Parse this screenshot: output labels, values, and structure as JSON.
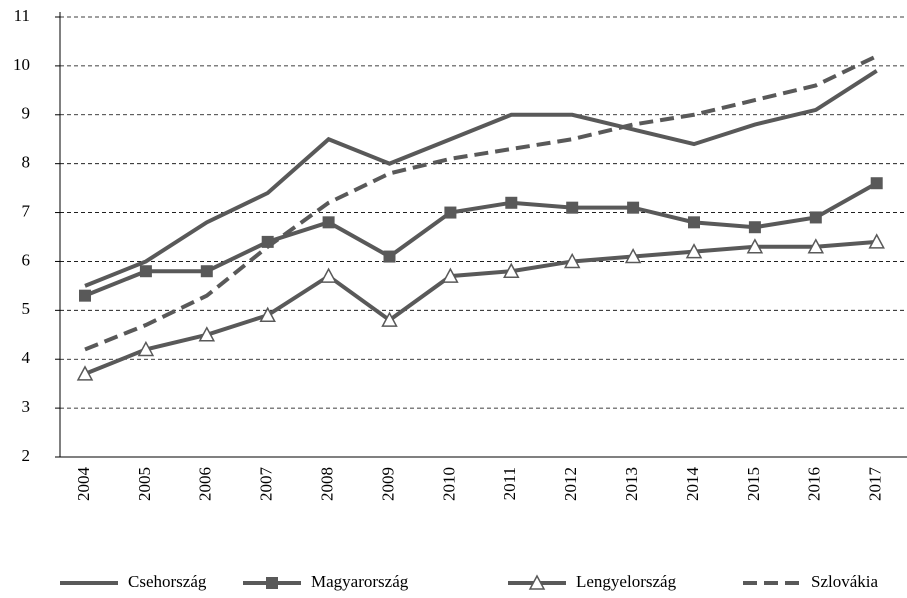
{
  "chart_data": {
    "type": "line",
    "categories": [
      "2004",
      "2005",
      "2006",
      "2007",
      "2008",
      "2009",
      "2010",
      "2011",
      "2012",
      "2013",
      "2014",
      "2015",
      "2016",
      "2017"
    ],
    "series": [
      {
        "name": "Csehország",
        "color": "#595959",
        "marker": "none",
        "dash": false,
        "values": [
          5.5,
          6.0,
          6.8,
          7.4,
          8.5,
          8.0,
          8.5,
          9.0,
          9.0,
          8.7,
          8.4,
          8.8,
          9.1,
          9.9
        ]
      },
      {
        "name": "Magyarország",
        "color": "#595959",
        "marker": "square",
        "dash": false,
        "values": [
          5.3,
          5.8,
          5.8,
          6.4,
          6.8,
          6.1,
          7.0,
          7.2,
          7.1,
          7.1,
          6.8,
          6.7,
          6.9,
          7.6
        ]
      },
      {
        "name": "Lengyelország",
        "color": "#595959",
        "marker": "triangle",
        "dash": false,
        "values": [
          3.7,
          4.2,
          4.5,
          4.9,
          5.7,
          4.8,
          5.7,
          5.8,
          6.0,
          6.1,
          6.2,
          6.3,
          6.3,
          6.4
        ]
      },
      {
        "name": "Szlovákia",
        "color": "#595959",
        "marker": "none",
        "dash": true,
        "values": [
          4.2,
          4.7,
          5.3,
          6.3,
          7.2,
          7.8,
          8.1,
          8.3,
          8.5,
          8.8,
          9.0,
          9.3,
          9.6,
          10.2
        ]
      }
    ],
    "ylim": [
      2,
      11
    ],
    "yticks": [
      2,
      3,
      4,
      5,
      6,
      7,
      8,
      9,
      10,
      11
    ],
    "grid": true,
    "legend": "bottom"
  }
}
